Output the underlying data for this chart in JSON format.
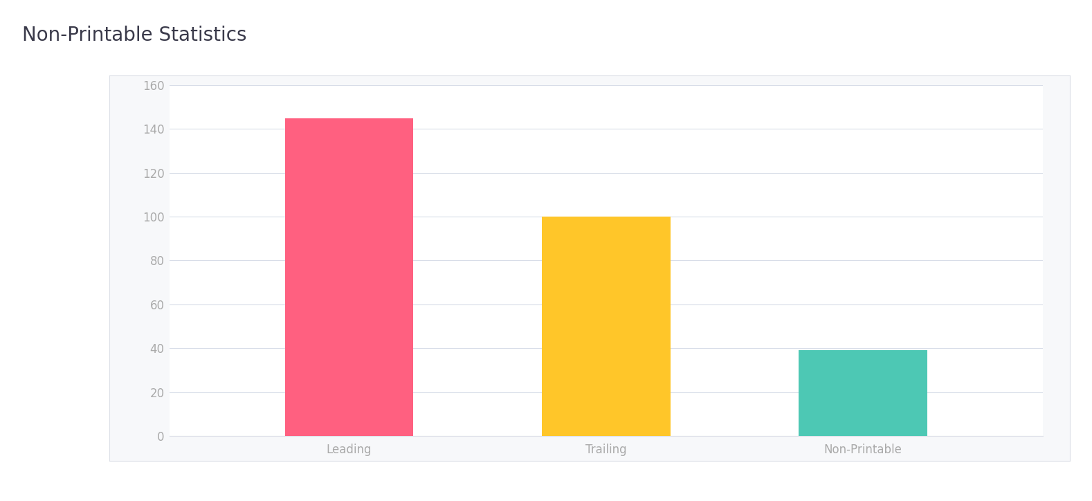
{
  "title": "Non-Printable Statistics",
  "categories": [
    "Leading",
    "Trailing",
    "Non-Printable"
  ],
  "values": [
    145,
    100,
    39
  ],
  "bar_colors": [
    "#FF6080",
    "#FFC629",
    "#4DC8B4"
  ],
  "ylim": [
    0,
    160
  ],
  "yticks": [
    0,
    20,
    40,
    60,
    80,
    100,
    120,
    140,
    160
  ],
  "background_color": "#ffffff",
  "chart_bg_color": "#ffffff",
  "panel_bg_color": "#f7f8fa",
  "grid_color": "#d8dde8",
  "title_fontsize": 20,
  "tick_fontsize": 12,
  "title_color": "#3a3a4a",
  "tick_color": "#aaaaaa",
  "bar_width": 0.5,
  "separator_color": "#dde0e8",
  "card_border_color": "#dde0e8"
}
